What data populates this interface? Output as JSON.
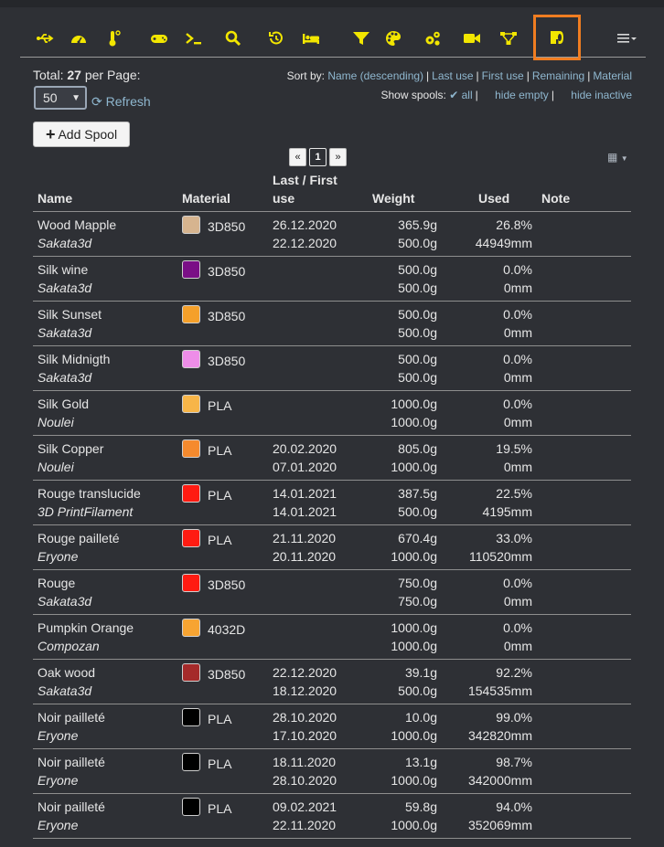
{
  "tabs": [
    {
      "name": "usb-icon",
      "color": "#f2e600"
    },
    {
      "name": "dashboard-icon",
      "color": "#f2e600"
    },
    {
      "name": "thermometer-icon",
      "color": "#f2e600"
    },
    {
      "name": "gamepad-icon",
      "color": "#f2e600"
    },
    {
      "name": "terminal-icon",
      "color": "#f2e600"
    },
    {
      "name": "search-icon",
      "color": "#f2e600"
    },
    {
      "name": "history-icon",
      "color": "#f2e600"
    },
    {
      "name": "bed-icon",
      "color": "#f2e600"
    },
    {
      "name": "filter-icon",
      "color": "#f2e600"
    },
    {
      "name": "palette-icon",
      "color": "#f2e600"
    },
    {
      "name": "cogs-icon",
      "color": "#f2e600"
    },
    {
      "name": "video-icon",
      "color": "#f2e600"
    },
    {
      "name": "network-icon",
      "color": "#f2e600"
    },
    {
      "name": "spool-icon",
      "color": "#f2e600",
      "active": true
    }
  ],
  "accent_active": "#f07d21",
  "toolbar": {
    "total_label": "Total:",
    "total_count": "27",
    "per_page_label": "per Page:",
    "per_page_value": "50",
    "refresh_label": "Refresh",
    "add_spool_label": "Add Spool"
  },
  "sort": {
    "label": "Sort by:",
    "options": [
      "Name (descending)",
      "Last use",
      "First use",
      "Remaining",
      "Material"
    ]
  },
  "show": {
    "label": "Show spools:",
    "all": "all",
    "hide_empty": "hide empty",
    "hide_inactive": "hide inactive"
  },
  "pager": {
    "prev": "«",
    "current": "1",
    "next": "»"
  },
  "columns": {
    "name": "Name",
    "material": "Material",
    "last_first_1": "Last / First",
    "last_first_2": "use",
    "weight": "Weight",
    "used": "Used",
    "note": "Note"
  },
  "rows": [
    {
      "name": "Wood Mapple",
      "vendor": "Sakata3d",
      "color": "#d6b48f",
      "material": "3D850",
      "last": "26.12.2020",
      "first": "22.12.2020",
      "remaining": "365.9g",
      "total": "500.0g",
      "used_pct": "26.8%",
      "used_len": "44949mm"
    },
    {
      "name": "Silk wine",
      "vendor": "Sakata3d",
      "color": "#7a0f86",
      "material": "3D850",
      "last": "",
      "first": "",
      "remaining": "500.0g",
      "total": "500.0g",
      "used_pct": "0.0%",
      "used_len": "0mm"
    },
    {
      "name": "Silk Sunset",
      "vendor": "Sakata3d",
      "color": "#f5a02a",
      "material": "3D850",
      "last": "",
      "first": "",
      "remaining": "500.0g",
      "total": "500.0g",
      "used_pct": "0.0%",
      "used_len": "0mm"
    },
    {
      "name": "Silk Midnigth",
      "vendor": "Sakata3d",
      "color": "#ee8de8",
      "material": "3D850",
      "last": "",
      "first": "",
      "remaining": "500.0g",
      "total": "500.0g",
      "used_pct": "0.0%",
      "used_len": "0mm"
    },
    {
      "name": "Silk Gold",
      "vendor": "Noulei",
      "color": "#f7b548",
      "material": "PLA",
      "last": "",
      "first": "",
      "remaining": "1000.0g",
      "total": "1000.0g",
      "used_pct": "0.0%",
      "used_len": "0mm"
    },
    {
      "name": "Silk Copper",
      "vendor": "Noulei",
      "color": "#f58a2e",
      "material": "PLA",
      "last": "20.02.2020",
      "first": "07.01.2020",
      "remaining": "805.0g",
      "total": "1000.0g",
      "used_pct": "19.5%",
      "used_len": "0mm"
    },
    {
      "name": "Rouge translucide",
      "vendor": "3D PrintFilament",
      "color": "#ff1b12",
      "material": "PLA",
      "last": "14.01.2021",
      "first": "14.01.2021",
      "remaining": "387.5g",
      "total": "500.0g",
      "used_pct": "22.5%",
      "used_len": "4195mm"
    },
    {
      "name": "Rouge pailleté",
      "vendor": "Eryone",
      "color": "#ff1b12",
      "material": "PLA",
      "last": "21.11.2020",
      "first": "20.11.2020",
      "remaining": "670.4g",
      "total": "1000.0g",
      "used_pct": "33.0%",
      "used_len": "110520mm"
    },
    {
      "name": "Rouge",
      "vendor": "Sakata3d",
      "color": "#ff1b12",
      "material": "3D850",
      "last": "",
      "first": "",
      "remaining": "750.0g",
      "total": "750.0g",
      "used_pct": "0.0%",
      "used_len": "0mm"
    },
    {
      "name": "Pumpkin Orange",
      "vendor": "Compozan",
      "color": "#f7a432",
      "material": "4032D",
      "last": "",
      "first": "",
      "remaining": "1000.0g",
      "total": "1000.0g",
      "used_pct": "0.0%",
      "used_len": "0mm"
    },
    {
      "name": "Oak wood",
      "vendor": "Sakata3d",
      "color": "#a52a2a",
      "material": "3D850",
      "last": "22.12.2020",
      "first": "18.12.2020",
      "remaining": "39.1g",
      "total": "500.0g",
      "used_pct": "92.2%",
      "used_len": "154535mm"
    },
    {
      "name": "Noir pailleté",
      "vendor": "Eryone",
      "color": "#000000",
      "material": "PLA",
      "last": "28.10.2020",
      "first": "17.10.2020",
      "remaining": "10.0g",
      "total": "1000.0g",
      "used_pct": "99.0%",
      "used_len": "342820mm"
    },
    {
      "name": "Noir pailleté",
      "vendor": "Eryone",
      "color": "#000000",
      "material": "PLA",
      "last": "18.11.2020",
      "first": "28.10.2020",
      "remaining": "13.1g",
      "total": "1000.0g",
      "used_pct": "98.7%",
      "used_len": "342000mm"
    },
    {
      "name": "Noir pailleté",
      "vendor": "Eryone",
      "color": "#000000",
      "material": "PLA",
      "last": "09.02.2021",
      "first": "22.11.2020",
      "remaining": "59.8g",
      "total": "1000.0g",
      "used_pct": "94.0%",
      "used_len": "352069mm"
    }
  ]
}
